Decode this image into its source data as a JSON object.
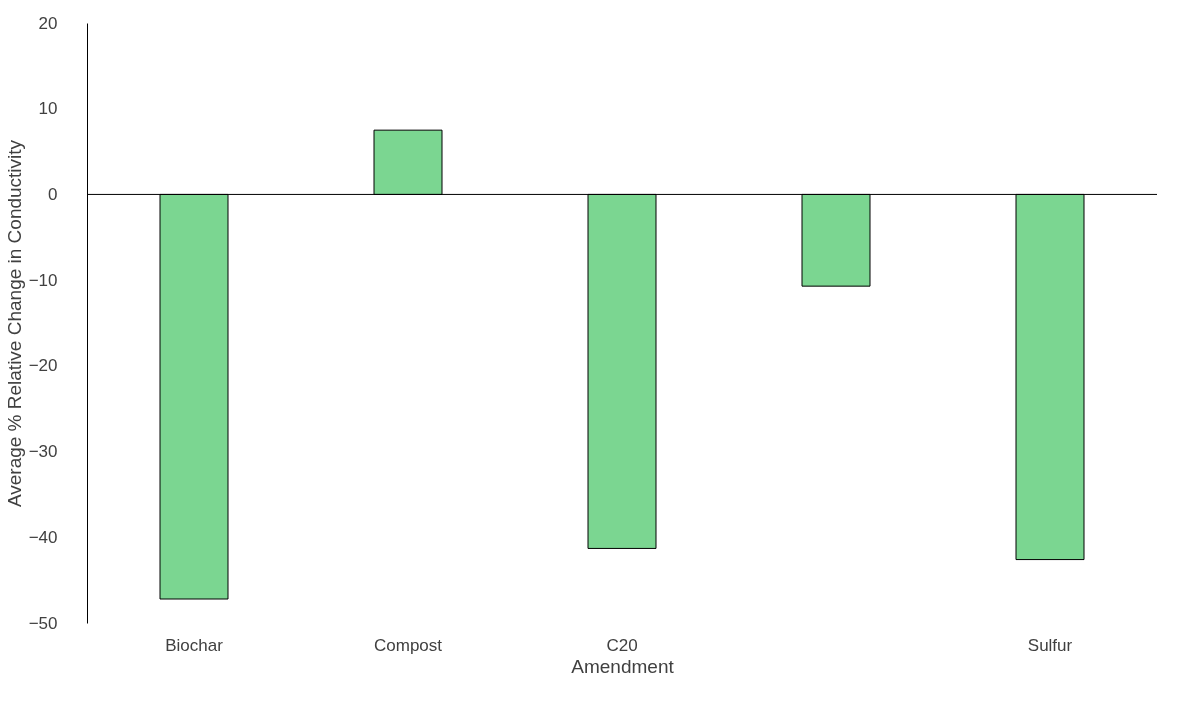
{
  "chart_data": {
    "type": "bar",
    "xlabel": "Amendment",
    "ylabel": "Average  % Relative  Change  in Conductivity",
    "categories": [
      "Biochar",
      "Compost",
      "C20",
      null,
      "Sulfur"
    ],
    "values": [
      -47.2,
      7.5,
      -41.3,
      -10.7,
      -42.6
    ],
    "color": "#7bd691",
    "ylim": [
      -50,
      20
    ],
    "yticks": [
      -50,
      -40,
      -30,
      -20,
      -10,
      0,
      10,
      20
    ],
    "grid": false,
    "ref_lines": [
      {
        "axis": "y",
        "value": 0,
        "color": "#000000"
      }
    ]
  }
}
